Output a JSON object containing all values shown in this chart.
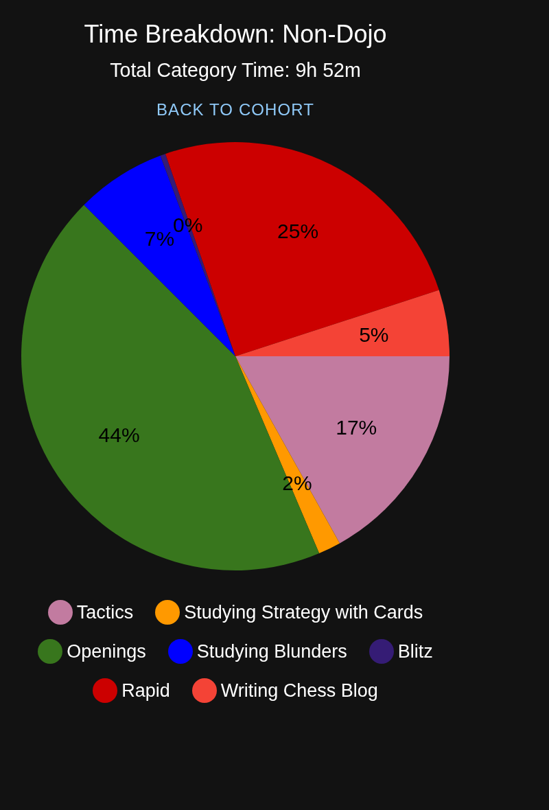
{
  "chart_data": {
    "type": "pie",
    "title": "Time Breakdown: Non-Dojo",
    "subtitle": "Total Category Time: 9h 52m",
    "annotations": [
      "BACK TO COHORT"
    ],
    "categories": [
      "Tactics",
      "Studying Strategy with Cards",
      "Openings",
      "Studying Blunders",
      "Blitz",
      "Rapid",
      "Writing Chess Blog"
    ],
    "values": [
      16.9,
      1.7,
      43.9,
      6.8,
      0.4,
      25.3,
      5.0
    ],
    "value_labels": [
      "17%",
      "2%",
      "44%",
      "7%",
      "0%",
      "25%",
      "5%"
    ],
    "colors": [
      "#c27ba0",
      "#ff9900",
      "#38761d",
      "#0000ff",
      "#351c75",
      "#cc0000",
      "#f44336"
    ],
    "legend": "bottom"
  }
}
